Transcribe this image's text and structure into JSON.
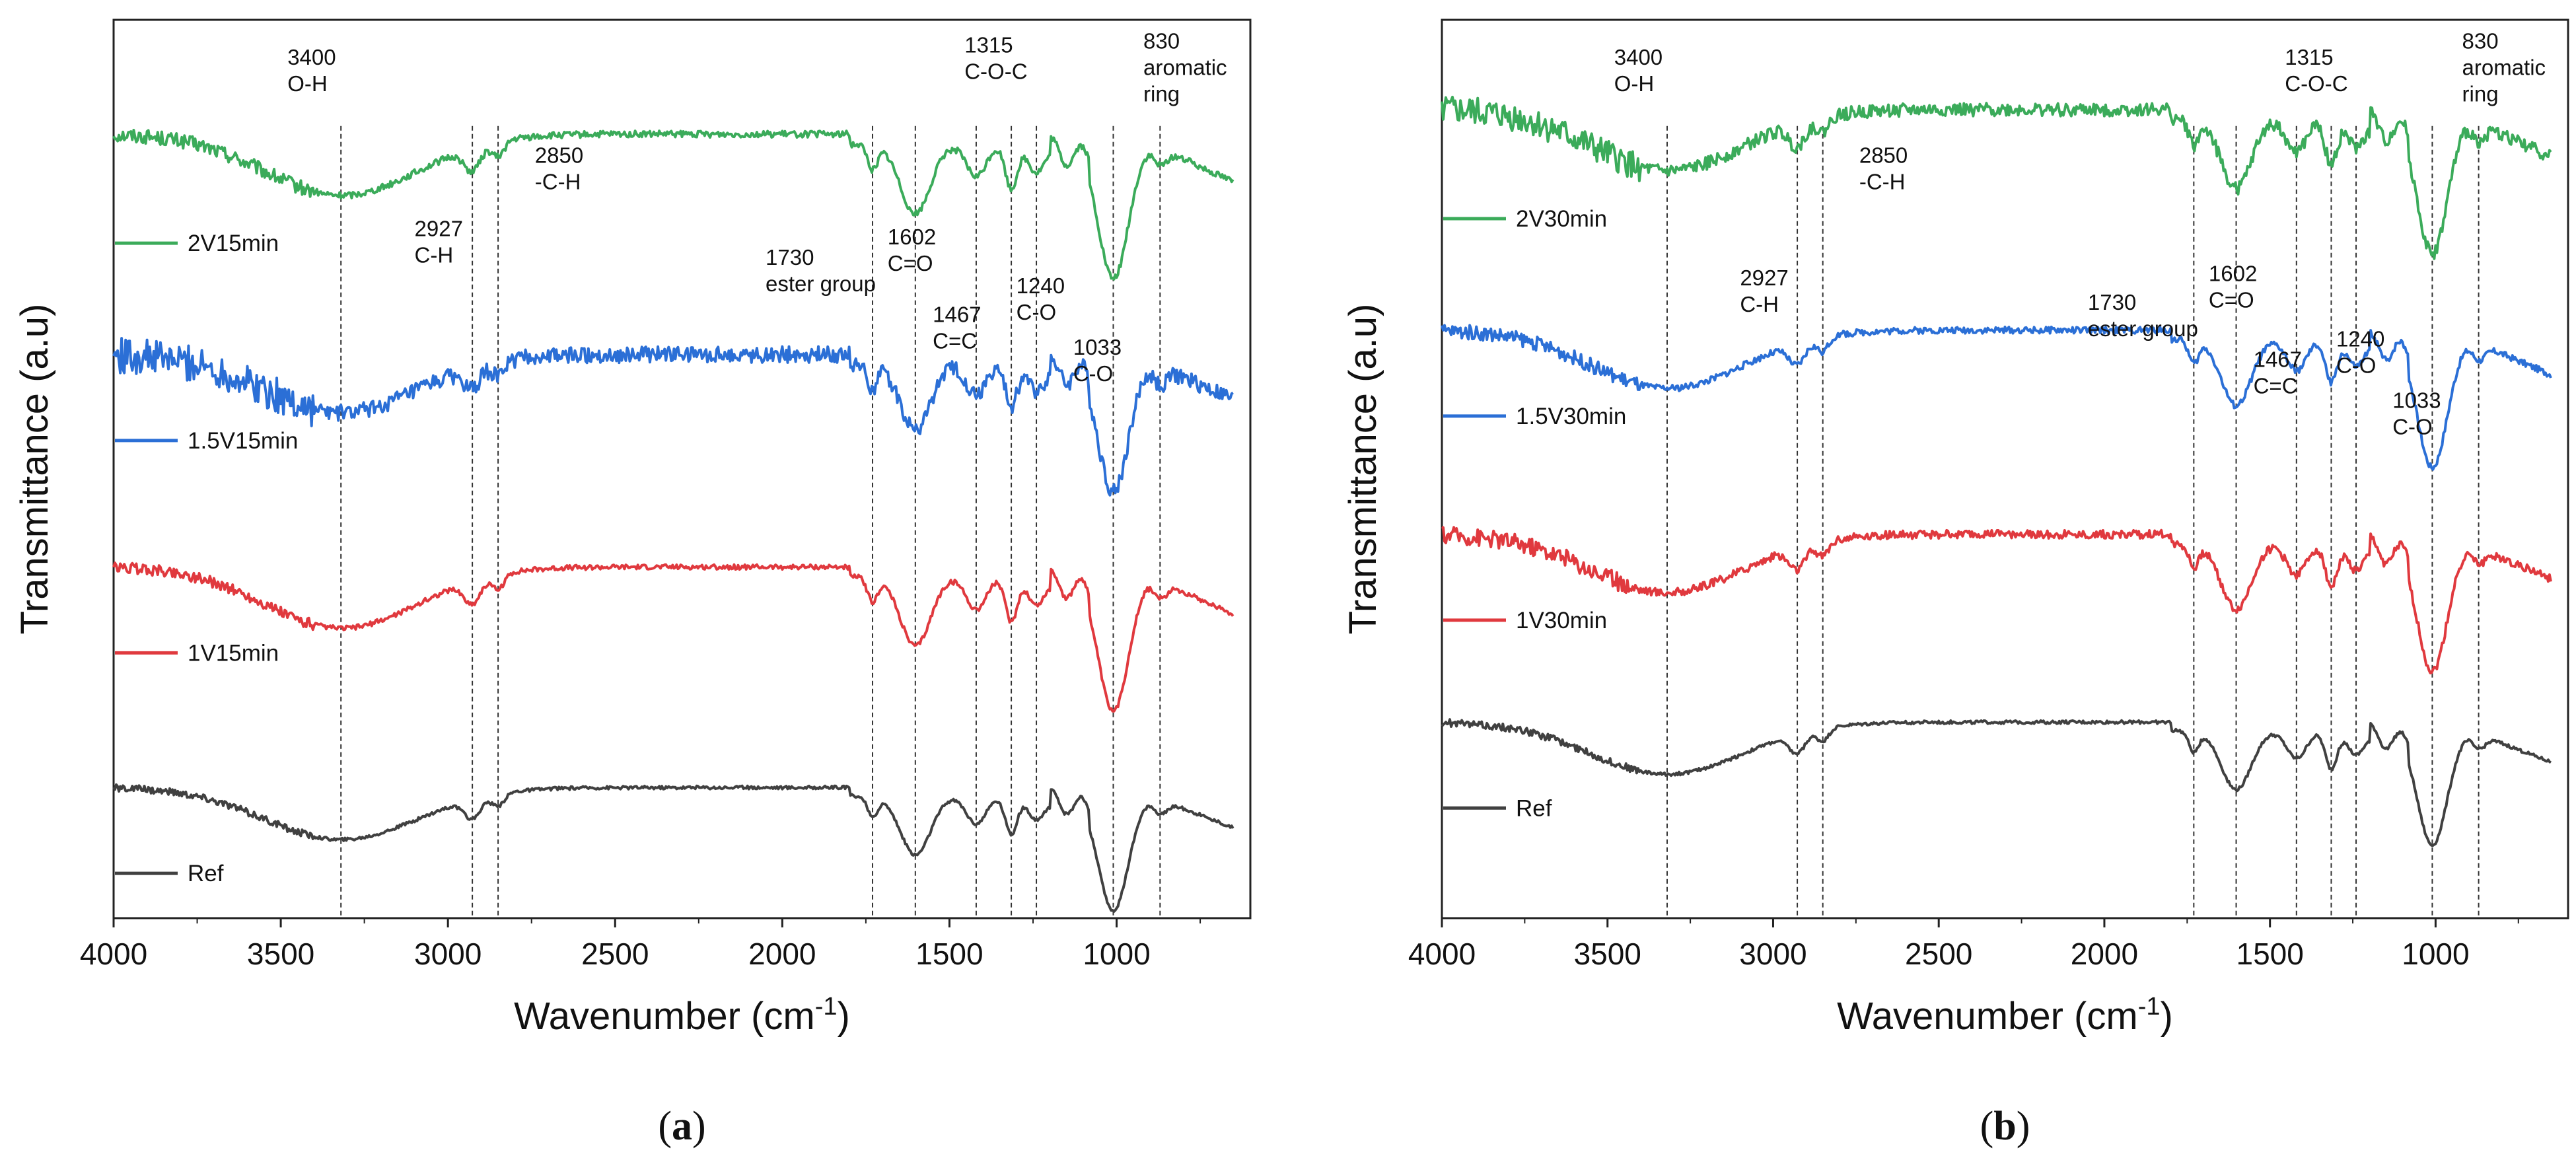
{
  "chart_data": [
    {
      "type": "line",
      "panel_label": "a",
      "xlabel": "Wavenumber (cm",
      "xlabel_sup": "-1",
      "xlabel_tail": ")",
      "ylabel": "Transmittance (a.u)",
      "xlim": [
        4000,
        600
      ],
      "x_reversed": true,
      "xticks": [
        4000,
        3500,
        3000,
        2500,
        2000,
        1500,
        1000
      ],
      "y_ticks_shown": false,
      "series": [
        {
          "name": "2V15min",
          "color": "#3bab5a",
          "baseline": 0.96,
          "scale": 1.0,
          "noise": 0.004,
          "legend_x": 2870
        },
        {
          "name": "1.5V15min",
          "color": "#2b6fd6",
          "baseline": 0.69,
          "scale": 0.95,
          "noise": 0.01,
          "legend_x": 2900
        },
        {
          "name": "1V15min",
          "color": "#e0393e",
          "baseline": 0.43,
          "scale": 1.0,
          "noise": 0.003,
          "legend_x": 2870
        },
        {
          "name": "Ref",
          "color": "#404040",
          "baseline": 0.16,
          "scale": 0.85,
          "noise": 0.002,
          "legend_x": 2830
        }
      ],
      "reference_lines": [
        3320,
        2927,
        2850,
        1730,
        1602,
        1420,
        1315,
        1240,
        1010,
        870
      ],
      "annotations": [
        {
          "lines": [
            "3400",
            "O-H"
          ],
          "x": 3480,
          "y": 1.045
        },
        {
          "lines": [
            "2927",
            "C-H"
          ],
          "x": 3100,
          "y": 0.835
        },
        {
          "lines": [
            "2850",
            "-C-H"
          ],
          "x": 2740,
          "y": 0.925
        },
        {
          "lines": [
            "1730",
            "ester group"
          ],
          "x": 2050,
          "y": 0.8
        },
        {
          "lines": [
            "1602",
            "C=O"
          ],
          "x": 1685,
          "y": 0.825
        },
        {
          "lines": [
            "1315",
            "C-O-C"
          ],
          "x": 1455,
          "y": 1.06
        },
        {
          "lines": [
            "1467",
            "C=C"
          ],
          "x": 1550,
          "y": 0.73
        },
        {
          "lines": [
            "1240",
            "C-O"
          ],
          "x": 1300,
          "y": 0.765
        },
        {
          "lines": [
            "1033",
            "C-O"
          ],
          "x": 1130,
          "y": 0.69
        },
        {
          "lines": [
            "830",
            "aromatic",
            "ring"
          ],
          "x": 920,
          "y": 1.065
        }
      ]
    },
    {
      "type": "line",
      "panel_label": "b",
      "xlabel": "Wavenumber (cm",
      "xlabel_sup": "-1",
      "xlabel_tail": ")",
      "ylabel": "Transmittance (a.u)",
      "xlim": [
        4000,
        600
      ],
      "x_reversed": true,
      "xticks": [
        4000,
        3500,
        3000,
        2500,
        2000,
        1500,
        1000
      ],
      "y_ticks_shown": false,
      "series": [
        {
          "name": "2V30min",
          "color": "#3bab5a",
          "baseline": 0.99,
          "scale": 1.0,
          "noise": 0.008,
          "legend_x": 2920
        },
        {
          "name": "1.5V30min",
          "color": "#2b6fd6",
          "baseline": 0.72,
          "scale": 0.95,
          "noise": 0.004,
          "legend_x": 2830
        },
        {
          "name": "1V30min",
          "color": "#e0393e",
          "baseline": 0.47,
          "scale": 0.95,
          "noise": 0.005,
          "legend_x": 2800
        },
        {
          "name": "Ref",
          "color": "#404040",
          "baseline": 0.24,
          "scale": 0.85,
          "noise": 0.002,
          "legend_x": 2850
        }
      ],
      "reference_lines": [
        3320,
        2927,
        2850,
        1730,
        1602,
        1420,
        1315,
        1240,
        1010,
        870
      ],
      "annotations": [
        {
          "lines": [
            "3400",
            "O-H"
          ],
          "x": 3480,
          "y": 1.045
        },
        {
          "lines": [
            "2927",
            "C-H"
          ],
          "x": 3100,
          "y": 0.775
        },
        {
          "lines": [
            "2850",
            "-C-H"
          ],
          "x": 2740,
          "y": 0.925
        },
        {
          "lines": [
            "1730",
            "ester group"
          ],
          "x": 2050,
          "y": 0.745
        },
        {
          "lines": [
            "1602",
            "C=O"
          ],
          "x": 1685,
          "y": 0.78
        },
        {
          "lines": [
            "1315",
            "C-O-C"
          ],
          "x": 1455,
          "y": 1.045
        },
        {
          "lines": [
            "1467",
            "C=C"
          ],
          "x": 1550,
          "y": 0.675
        },
        {
          "lines": [
            "1240",
            "C-O"
          ],
          "x": 1300,
          "y": 0.7
        },
        {
          "lines": [
            "1033",
            "C-O"
          ],
          "x": 1130,
          "y": 0.625
        },
        {
          "lines": [
            "830",
            "aromatic",
            "ring"
          ],
          "x": 920,
          "y": 1.065
        }
      ]
    }
  ]
}
